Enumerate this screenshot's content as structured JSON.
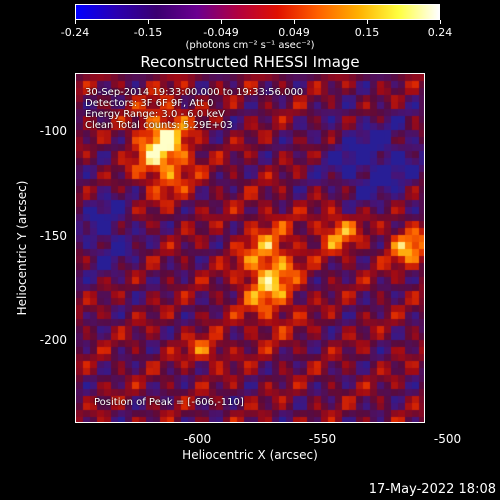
{
  "colorbar": {
    "ticks": [
      "-0.24",
      "-0.15",
      "-0.049",
      "0.049",
      "0.15",
      "0.24"
    ],
    "units": "(photons cm⁻² s⁻¹ asec⁻²)",
    "colors": [
      "#0000ff",
      "#2a00b0",
      "#3a0070",
      "#6a0090",
      "#b00040",
      "#e01000",
      "#ff6000",
      "#ffb000",
      "#ffff40",
      "#ffffff"
    ]
  },
  "plot": {
    "title": "Reconstructed RHESSI Image",
    "info_lines": [
      "30-Sep-2014 19:33:00.000 to 19:33:56.000",
      "Detectors: 3F 6F 9F, Att 0",
      "Energy Range: 3.0 - 6.0 keV",
      "Clean    Total counts: 5.29E+03"
    ],
    "peak": "Position of Peak = [-606,-110]",
    "x_ticks": [
      "-600",
      "-550",
      "-500"
    ],
    "y_ticks": [
      "-100",
      "-150",
      "-200"
    ],
    "xlabel": "Heliocentric X (arcsec)",
    "ylabel": "Heliocentric Y (arcsec)",
    "x_range": [
      -649,
      -509
    ],
    "y_range": [
      -240,
      -72
    ],
    "x_tick_values": [
      -600,
      -550,
      -500
    ],
    "y_tick_values": [
      -100,
      -150,
      -200
    ]
  },
  "timestamp": "17-May-2022 18:08"
}
